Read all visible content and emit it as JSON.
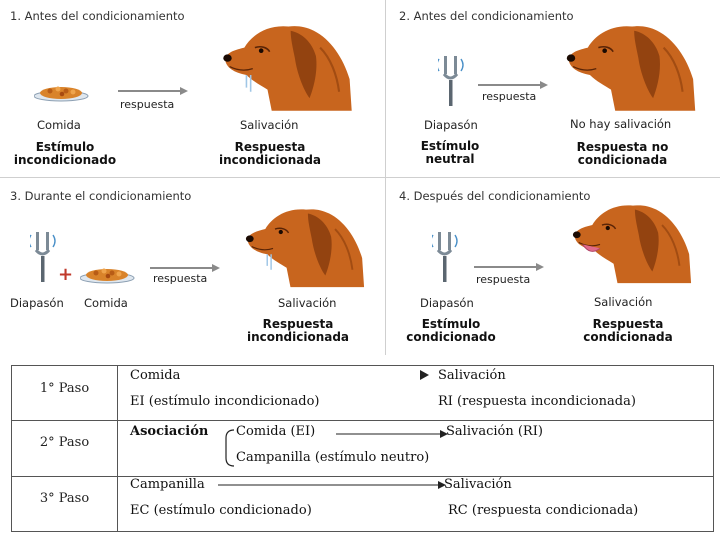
{
  "panels": [
    {
      "title": "1. Antes del condicionamiento",
      "arrow": "respuesta",
      "left_label": "Comida",
      "left_bold": "Estímulo incondicionado",
      "right_label": "Salivación",
      "right_bold": "Respuesta incondicionada"
    },
    {
      "title": "2. Antes del condicionamiento",
      "arrow": "respuesta",
      "left_label": "Diapasón",
      "left_bold": "Estímulo neutral",
      "right_label": "No hay salivación",
      "right_bold": "Respuesta no condicionada"
    },
    {
      "title": "3. Durante el condicionamiento",
      "arrow": "respuesta",
      "left_label": "Diapasón",
      "left_label2": "Comida",
      "right_label": "Salivación",
      "right_bold": "Respuesta incondicionada"
    },
    {
      "title": "4. Después del condicionamiento",
      "arrow": "respuesta",
      "left_label": "Diapasón",
      "left_bold": "Estímulo condicionado",
      "right_label": "Salivación",
      "right_bold": "Respuesta condicionada"
    }
  ],
  "steps": {
    "step1": {
      "label": "1° Paso",
      "left_top": "Comida",
      "right_top": "Salivación",
      "left_bottom": "EI (estímulo incondicionado)",
      "right_bottom": "RI (respuesta incondicionada)"
    },
    "step2": {
      "label": "2° Paso",
      "assoc": "Asociación",
      "item1": "Comida (EI)",
      "item2": "Campanilla (estímulo neutro)",
      "result": "Salivación (RI)"
    },
    "step3": {
      "label": "3° Paso",
      "left_top": "Campanilla",
      "right_top": "Salivación",
      "left_bottom": "EC (estímulo condicionado)",
      "right_bottom": "RC (respuesta condicionada)"
    }
  },
  "colors": {
    "dog": "#c8651e",
    "dog_dark": "#8a3d0e",
    "food": "#d9832a",
    "plate": "#dfe7ef"
  }
}
